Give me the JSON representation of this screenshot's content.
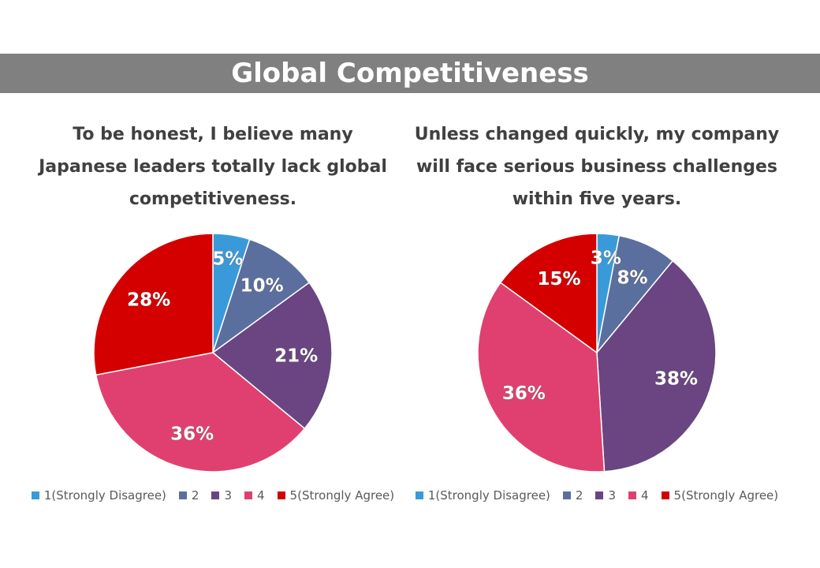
{
  "banner": {
    "title": "Global Competitiveness"
  },
  "chart_data": [
    {
      "type": "pie",
      "title": "To be honest, I believe many\nJapanese leaders totally lack global\ncompetitiveness.",
      "categories": [
        "1(Strongly Disagree)",
        "2",
        "3",
        "4",
        "5(Strongly Agree)"
      ],
      "values": [
        5,
        10,
        21,
        36,
        28
      ],
      "labels": [
        "5%",
        "10%",
        "21%",
        "36%",
        "28%"
      ],
      "colors": [
        "#3A9AD9",
        "#5B6F9E",
        "#6A4581",
        "#E0406F",
        "#D40000"
      ],
      "legend_position": "bottom"
    },
    {
      "type": "pie",
      "title": "Unless changed quickly, my company\nwill face serious business challenges\nwithin five years.",
      "categories": [
        "1(Strongly Disagree)",
        "2",
        "3",
        "4",
        "5(Strongly Agree)"
      ],
      "values": [
        3,
        8,
        38,
        36,
        15
      ],
      "labels": [
        "3%",
        "8%",
        "38%",
        "36%",
        "15%"
      ],
      "colors": [
        "#3A9AD9",
        "#5B6F9E",
        "#6A4581",
        "#E0406F",
        "#D40000"
      ],
      "legend_position": "bottom"
    }
  ]
}
